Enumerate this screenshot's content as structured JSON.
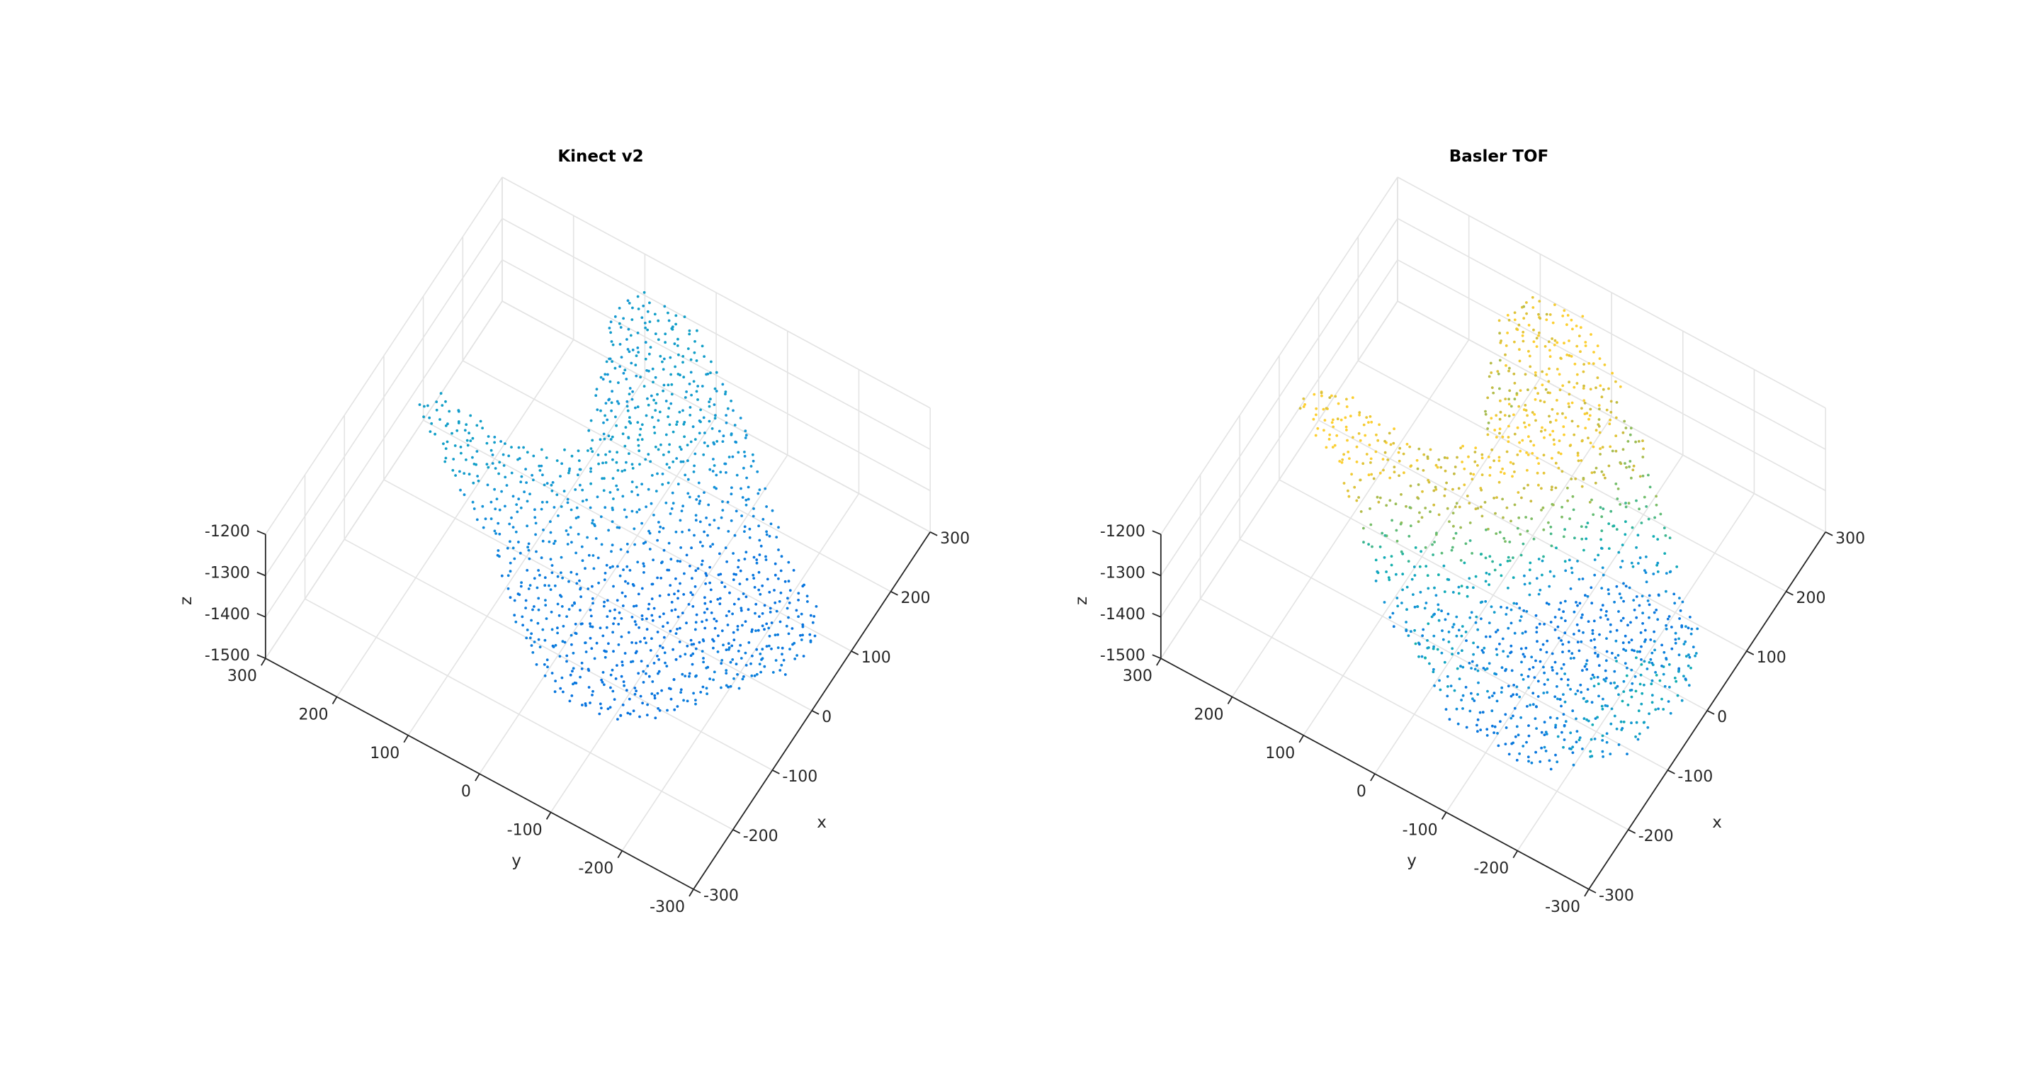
{
  "chart_data": [
    {
      "type": "scatter",
      "title": "Kinect v2",
      "xlabel": "x",
      "ylabel": "y",
      "zlabel": "z",
      "xlim": [
        -300,
        300
      ],
      "ylim": [
        -300,
        300
      ],
      "zlim": [
        -1500,
        -1200
      ],
      "x_ticks": [
        "-300",
        "-200",
        "-100",
        "0",
        "100",
        "200",
        "300"
      ],
      "y_ticks": [
        "300",
        "200",
        "100",
        "0",
        "-100",
        "-200",
        "-300"
      ],
      "z_ticks": [
        "-1200",
        "-1300",
        "-1400",
        "-1500"
      ],
      "grid": true,
      "colormap": "parula",
      "series": [
        {
          "name": "",
          "region_outline_xy": [
            [
              -60,
              -280
            ],
            [
              -10,
              -300
            ],
            [
              60,
              -280
            ],
            [
              130,
              -180
            ],
            [
              220,
              -80
            ],
            [
              300,
              40
            ],
            [
              300,
              120
            ],
            [
              250,
              120
            ],
            [
              160,
              90
            ],
            [
              80,
              60
            ],
            [
              40,
              80
            ],
            [
              30,
              160
            ],
            [
              40,
              240
            ],
            [
              10,
              260
            ],
            [
              -40,
              200
            ],
            [
              -80,
              120
            ],
            [
              -120,
              60
            ],
            [
              -170,
              20
            ],
            [
              -220,
              -60
            ],
            [
              -200,
              -160
            ],
            [
              -140,
              -220
            ]
          ],
          "z_range": [
            -1380,
            -1290
          ]
        }
      ]
    },
    {
      "type": "scatter",
      "title": "Basler TOF",
      "xlabel": "x",
      "ylabel": "y",
      "zlabel": "z",
      "xlim": [
        -300,
        300
      ],
      "ylim": [
        -300,
        300
      ],
      "zlim": [
        -1500,
        -1200
      ],
      "x_ticks": [
        "-300",
        "-200",
        "-100",
        "0",
        "100",
        "200",
        "300"
      ],
      "y_ticks": [
        "300",
        "200",
        "100",
        "0",
        "-100",
        "-200",
        "-300"
      ],
      "z_ticks": [
        "-1200",
        "-1300",
        "-1400",
        "-1500"
      ],
      "grid": true,
      "colormap": "parula",
      "series": [
        {
          "name": "",
          "region_outline_xy": [
            [
              -120,
              -280
            ],
            [
              -40,
              -300
            ],
            [
              60,
              -260
            ],
            [
              140,
              -160
            ],
            [
              220,
              -80
            ],
            [
              300,
              40
            ],
            [
              300,
              120
            ],
            [
              250,
              130
            ],
            [
              160,
              100
            ],
            [
              80,
              60
            ],
            [
              50,
              90
            ],
            [
              40,
              170
            ],
            [
              50,
              260
            ],
            [
              10,
              280
            ],
            [
              -40,
              220
            ],
            [
              -100,
              120
            ],
            [
              -160,
              40
            ],
            [
              -220,
              -60
            ],
            [
              -220,
              -180
            ],
            [
              -180,
              -250
            ]
          ],
          "z_range": [
            -1440,
            -1290
          ]
        }
      ]
    }
  ]
}
